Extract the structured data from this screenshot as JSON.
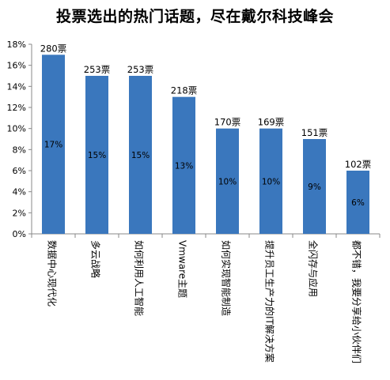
{
  "chart_data": {
    "type": "bar",
    "title": "投票选出的热门话题，尽在戴尔科技峰会",
    "categories": [
      "数据中心现代化",
      "多云战略",
      "如何利用人工智能",
      "Vmware主题",
      "如何实现智能制造",
      "提升员工生产力的IT解决方案",
      "全闪存与应用",
      "都不错，我要分享给小伙伴们"
    ],
    "values": [
      17,
      15,
      15,
      13,
      10,
      10,
      9,
      6
    ],
    "value_labels": [
      "17%",
      "15%",
      "15%",
      "13%",
      "10%",
      "10%",
      "9%",
      "6%"
    ],
    "vote_labels": [
      "280票",
      "253票",
      "253票",
      "218票",
      "170票",
      "169票",
      "151票",
      "102票"
    ],
    "y_ticks": [
      "0%",
      "2%",
      "4%",
      "6%",
      "8%",
      "10%",
      "12%",
      "14%",
      "16%",
      "18%"
    ],
    "ylim": [
      0,
      18
    ],
    "grid": false,
    "colors": {
      "bar": "#3A77BD",
      "axis": "#888888"
    }
  }
}
